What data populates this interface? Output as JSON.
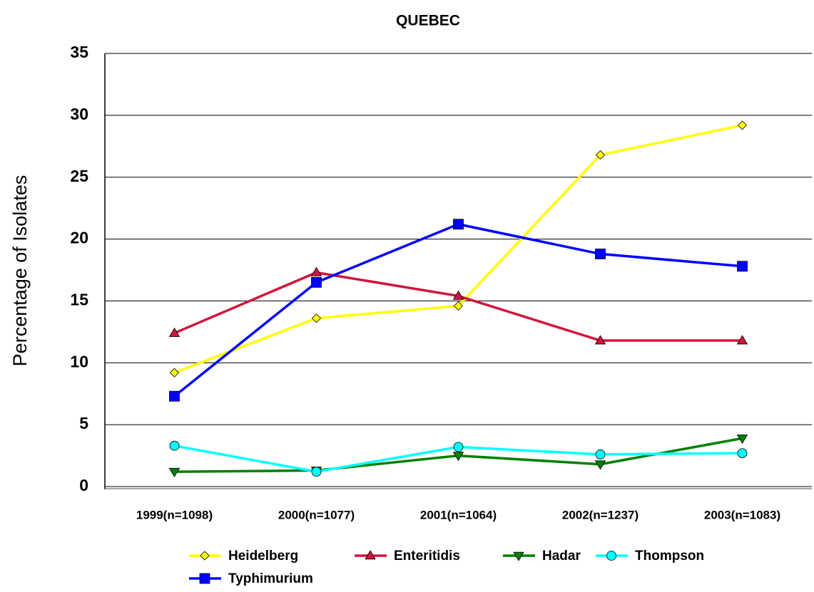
{
  "chart_data": {
    "type": "line",
    "title": "QUEBEC",
    "y_label": "Percentage of Isolates",
    "categories": [
      "1999(n=1098)",
      "2000(n=1077)",
      "2001(n=1064)",
      "2002(n=1237)",
      "2003(n=1083)"
    ],
    "series": [
      {
        "name": "Heidelberg",
        "color": "#ffff00",
        "marker": "diamond",
        "values": [
          9.2,
          13.6,
          14.6,
          26.8,
          29.2
        ]
      },
      {
        "name": "Enteritidis",
        "color": "#d2143c",
        "marker": "triangle",
        "values": [
          12.4,
          17.3,
          15.4,
          11.8,
          11.8
        ]
      },
      {
        "name": "Hadar",
        "color": "#008000",
        "marker": "triangle-down",
        "values": [
          1.2,
          1.3,
          2.5,
          1.8,
          3.9
        ]
      },
      {
        "name": "Thompson",
        "color": "#00ffff",
        "marker": "circle",
        "values": [
          3.3,
          1.2,
          3.2,
          2.6,
          2.7
        ]
      },
      {
        "name": "Typhimurium",
        "color": "#0000ff",
        "marker": "square",
        "values": [
          7.3,
          16.5,
          21.2,
          18.8,
          17.8
        ]
      }
    ],
    "ylim": [
      0,
      35
    ],
    "yticks": [
      0,
      5,
      10,
      15,
      20,
      25,
      30,
      35
    ],
    "grid": true,
    "legend": "bottom"
  }
}
